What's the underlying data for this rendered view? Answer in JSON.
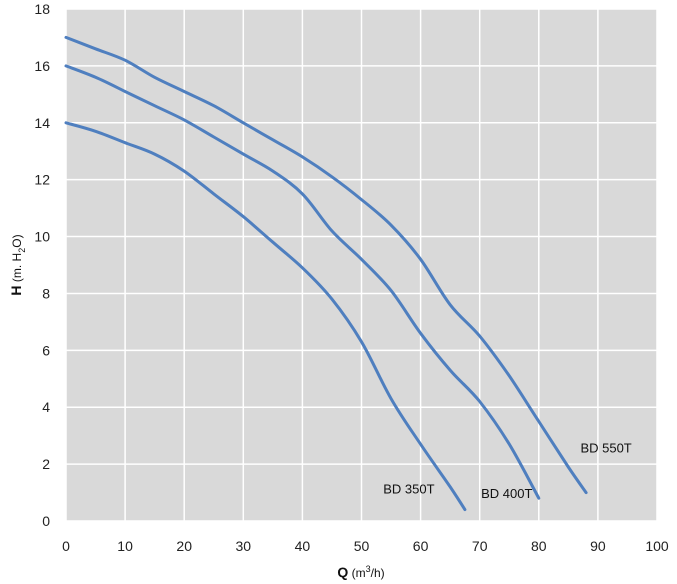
{
  "chart_data": {
    "type": "line",
    "title": "",
    "xlabel": {
      "main": "Q",
      "unit_pre": " (m",
      "unit_sup": "3",
      "unit_post": "/h)"
    },
    "ylabel": {
      "main": "H",
      "unit_pre": " (m. H",
      "unit_sub": "2",
      "unit_post": "O)"
    },
    "xlim": [
      0,
      100
    ],
    "ylim": [
      0,
      18
    ],
    "xticks": [
      0,
      10,
      20,
      30,
      40,
      50,
      60,
      70,
      80,
      90,
      100
    ],
    "yticks": [
      0,
      2,
      4,
      6,
      8,
      10,
      12,
      14,
      16,
      18
    ],
    "grid": true,
    "background_color": "#d9d9d9",
    "grid_color": "#ffffff",
    "line_color": "#4f7fbf",
    "series": [
      {
        "name": "BD 350T",
        "x": [
          0,
          5,
          10,
          15,
          20,
          25,
          30,
          35,
          40,
          45,
          50,
          55,
          60,
          65,
          67.5
        ],
        "y": [
          14,
          13.7,
          13.3,
          12.9,
          12.3,
          11.5,
          10.7,
          9.8,
          8.9,
          7.8,
          6.3,
          4.3,
          2.7,
          1.2,
          0.4
        ]
      },
      {
        "name": "BD 400T",
        "x": [
          0,
          5,
          10,
          15,
          20,
          25,
          30,
          35,
          40,
          45,
          50,
          55,
          60,
          65,
          70,
          75,
          80
        ],
        "y": [
          16,
          15.6,
          15.1,
          14.6,
          14.1,
          13.5,
          12.9,
          12.3,
          11.5,
          10.2,
          9.2,
          8.1,
          6.6,
          5.3,
          4.2,
          2.7,
          0.8
        ]
      },
      {
        "name": "BD 550T",
        "x": [
          0,
          5,
          10,
          15,
          20,
          25,
          30,
          35,
          40,
          45,
          50,
          55,
          60,
          65,
          70,
          75,
          80,
          85,
          88
        ],
        "y": [
          17,
          16.6,
          16.2,
          15.6,
          15.1,
          14.6,
          14.0,
          13.4,
          12.8,
          12.1,
          11.3,
          10.4,
          9.2,
          7.6,
          6.5,
          5.1,
          3.5,
          1.9,
          1.0
        ]
      }
    ]
  }
}
